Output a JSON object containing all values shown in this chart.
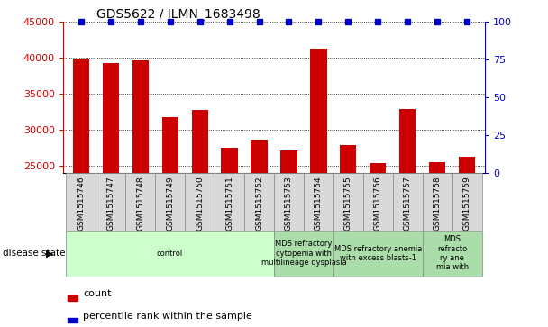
{
  "title": "GDS5622 / ILMN_1683498",
  "samples": [
    "GSM1515746",
    "GSM1515747",
    "GSM1515748",
    "GSM1515749",
    "GSM1515750",
    "GSM1515751",
    "GSM1515752",
    "GSM1515753",
    "GSM1515754",
    "GSM1515755",
    "GSM1515756",
    "GSM1515757",
    "GSM1515758",
    "GSM1515759"
  ],
  "counts": [
    39800,
    39200,
    39600,
    31800,
    32700,
    27500,
    28600,
    27200,
    41200,
    27900,
    25400,
    32900,
    25500,
    26300
  ],
  "percentiles": [
    100,
    100,
    100,
    100,
    100,
    100,
    100,
    100,
    100,
    100,
    100,
    100,
    100,
    100
  ],
  "ylim_left": [
    24000,
    45000
  ],
  "ylim_right": [
    0,
    100
  ],
  "yticks_left": [
    25000,
    30000,
    35000,
    40000,
    45000
  ],
  "yticks_right": [
    0,
    25,
    50,
    75,
    100
  ],
  "bar_color": "#cc0000",
  "dot_color": "#0000cc",
  "title_color": "#000000",
  "left_tick_color": "#cc0000",
  "right_tick_color": "#0000cc",
  "disease_groups": [
    {
      "label": "control",
      "start": 0,
      "end": 7,
      "color": "#ccffcc"
    },
    {
      "label": "MDS refractory\ncytopenia with\nmultilineage dysplasia",
      "start": 7,
      "end": 9,
      "color": "#99ee99"
    },
    {
      "label": "MDS refractory anemia\nwith excess blasts-1",
      "start": 9,
      "end": 12,
      "color": "#88ee99"
    },
    {
      "label": "MDS\nrefracto\nry ane\nmia with",
      "start": 12,
      "end": 14,
      "color": "#77ee88"
    }
  ],
  "disease_state_label": "disease state",
  "legend_count_label": "count",
  "legend_percentile_label": "percentile rank within the sample"
}
